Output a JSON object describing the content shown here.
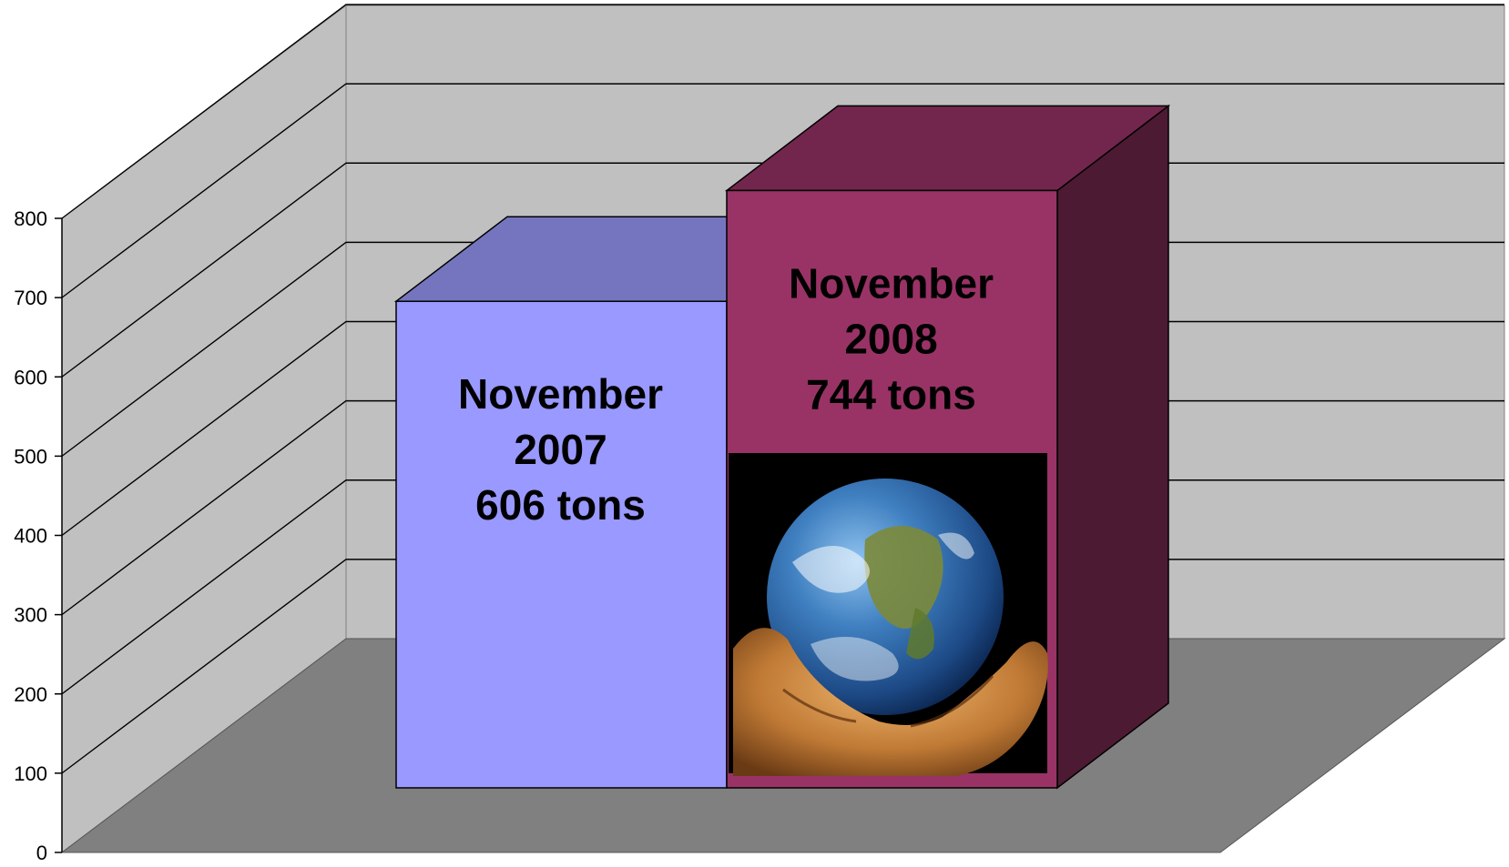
{
  "chart_data": {
    "type": "bar",
    "three_d": true,
    "ylim": [
      0,
      800
    ],
    "y_ticks": [
      0,
      100,
      200,
      300,
      400,
      500,
      600,
      700,
      800
    ],
    "grid": true,
    "legend": "none",
    "categories": [
      "November 2007",
      "November 2008"
    ],
    "values": [
      606,
      744
    ],
    "units": "tons",
    "bars": [
      {
        "label_lines": [
          "November",
          "2007",
          "606 tons"
        ],
        "value": 606,
        "color_front": "#9999ff",
        "color_top": "#7575bf",
        "color_side": "#5c5c99"
      },
      {
        "label_lines": [
          "November",
          "2008",
          "744 tons"
        ],
        "value": 744,
        "color_front": "#993366",
        "color_top": "#73264d",
        "color_side": "#4d1a33",
        "image": "earth-in-hands"
      }
    ],
    "colors": {
      "back_wall": "#c0c0c0",
      "side_wall": "#c0c0c0",
      "floor": "#808080",
      "gridline": "#000000"
    }
  }
}
